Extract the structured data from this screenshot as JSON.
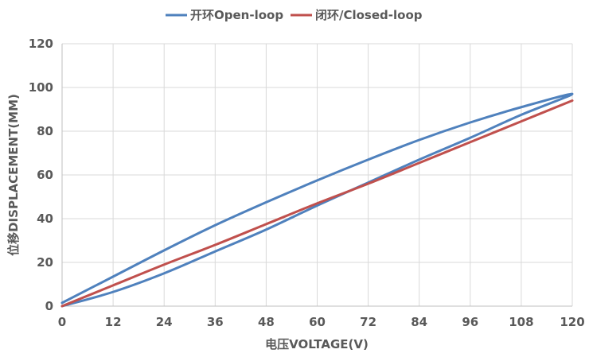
{
  "chart_data": {
    "type": "line",
    "title": "",
    "xlabel": "电压VOLTAGE(V)",
    "ylabel": "位移DISPLACEMENT(MM)",
    "xlim": [
      0,
      120
    ],
    "ylim": [
      0,
      120
    ],
    "xticks": [
      0,
      12,
      24,
      36,
      48,
      60,
      72,
      84,
      96,
      108,
      120
    ],
    "yticks": [
      0,
      20,
      40,
      60,
      80,
      100,
      120
    ],
    "grid": true,
    "legend_position": "top-center",
    "series": [
      {
        "name": "开环Open-loop",
        "color": "#4f81bd",
        "x": [
          0,
          12,
          24,
          36,
          48,
          60,
          72,
          84,
          96,
          108,
          120,
          108,
          96,
          84,
          72,
          60,
          48,
          36,
          24,
          12,
          0
        ],
        "y": [
          0,
          6.5,
          15,
          25,
          35,
          46,
          56.5,
          67,
          77,
          87.5,
          97,
          91,
          84,
          76,
          67,
          57.5,
          47.5,
          37,
          25.5,
          13.5,
          1.5
        ]
      },
      {
        "name": "闭环/Closed-loop",
        "color": "#c0504d",
        "x": [
          0,
          12,
          24,
          36,
          48,
          60,
          72,
          84,
          96,
          108,
          120
        ],
        "y": [
          0,
          9.5,
          19,
          28,
          37.5,
          47,
          56,
          65.5,
          75,
          84.5,
          94
        ]
      }
    ]
  }
}
